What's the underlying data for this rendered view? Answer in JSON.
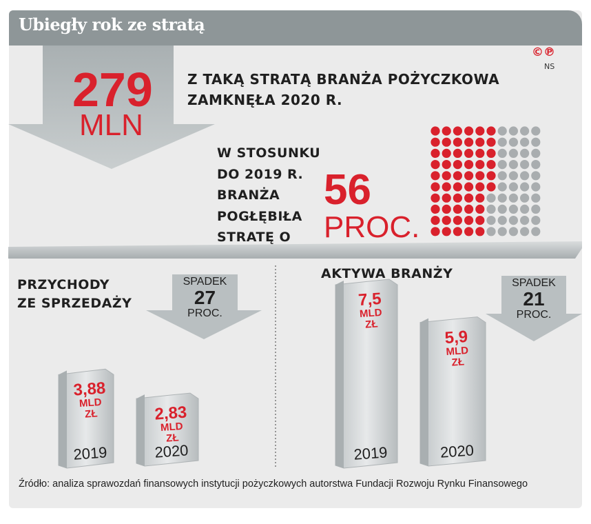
{
  "title": "Ubiegły rok ze stratą",
  "copyright": "©℗",
  "author": "NS",
  "headline": {
    "value": "279",
    "unit": "MLN",
    "text_line1": "Z TAKĄ STRATĄ BRANŻA POŻYCZKOWA",
    "text_line2": "ZAMKNĘŁA 2020 R."
  },
  "comparison": {
    "text_lines": [
      "W STOSUNKU",
      "DO 2019 R.",
      "BRANŻA",
      "POGŁĘBIŁA",
      "STRATĘ O"
    ],
    "value": "56",
    "unit": "PROC.",
    "dots_total": 100,
    "dots_highlighted": 56
  },
  "sales": {
    "title_line1": "PRZYCHODY",
    "title_line2": "ZE SPRZEDAŻY",
    "change_label": "SPADEK",
    "change_value": "27",
    "change_unit": "PROC."
  },
  "assets": {
    "title": "AKTYWA BRANŻY",
    "change_label": "SPADEK",
    "change_value": "21",
    "change_unit": "PROC."
  },
  "chart_data": [
    {
      "type": "bar",
      "title": "Przychody ze sprzedaży",
      "categories": [
        "2019",
        "2020"
      ],
      "values": [
        3.88,
        2.83
      ],
      "value_labels": [
        [
          "3,88",
          "MLD",
          "ZŁ"
        ],
        [
          "2,83",
          "MLD",
          "ZŁ"
        ]
      ],
      "unit": "mld zł"
    },
    {
      "type": "bar",
      "title": "Aktywa branży",
      "categories": [
        "2019",
        "2020"
      ],
      "values": [
        7.5,
        5.9
      ],
      "value_labels": [
        [
          "7,5",
          "MLD",
          "ZŁ"
        ],
        [
          "5,9",
          "MLD",
          "ZŁ"
        ]
      ],
      "unit": "mld zł"
    }
  ],
  "source": "Źródło: analiza sprawozdań finansowych instytucji pożyczkowych autorstwa Fundacji Rozwoju Rynku Finansowego"
}
